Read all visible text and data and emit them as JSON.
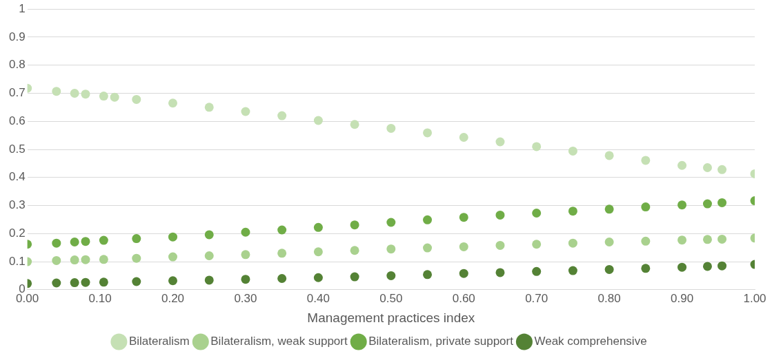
{
  "chart_data": {
    "type": "scatter",
    "xlabel": "Management practices index",
    "xlim": [
      0,
      1
    ],
    "ylim": [
      0,
      1
    ],
    "xticks": [
      {
        "value": 0,
        "label": "0.00"
      },
      {
        "value": 0.1,
        "label": "0.10"
      },
      {
        "value": 0.2,
        "label": "0.20"
      },
      {
        "value": 0.3,
        "label": "0.30"
      },
      {
        "value": 0.4,
        "label": "0.40"
      },
      {
        "value": 0.5,
        "label": "0.50"
      },
      {
        "value": 0.6,
        "label": "0.60"
      },
      {
        "value": 0.7,
        "label": "0.70"
      },
      {
        "value": 0.8,
        "label": "0.80"
      },
      {
        "value": 0.9,
        "label": "0.90"
      },
      {
        "value": 1,
        "label": "1.00"
      }
    ],
    "yticks": [
      0,
      0.1,
      0.2,
      0.3,
      0.4,
      0.5,
      0.6,
      0.7,
      0.8,
      0.9,
      1
    ],
    "grid": "y",
    "legend": "bottom",
    "marker": "circle",
    "series": [
      {
        "name": "Bilateralism",
        "color": "#c5e0b4",
        "x": [
          0,
          0.04,
          0.065,
          0.08,
          0.105,
          0.12,
          0.15,
          0.2,
          0.25,
          0.3,
          0.35,
          0.4,
          0.45,
          0.5,
          0.55,
          0.6,
          0.65,
          0.7,
          0.75,
          0.8,
          0.85,
          0.9,
          0.935,
          0.955,
          1
        ],
        "values": [
          0.718,
          0.707,
          0.7,
          0.697,
          0.69,
          0.686,
          0.678,
          0.665,
          0.65,
          0.635,
          0.62,
          0.603,
          0.589,
          0.575,
          0.559,
          0.543,
          0.527,
          0.51,
          0.494,
          0.478,
          0.461,
          0.443,
          0.435,
          0.428,
          0.413
        ]
      },
      {
        "name": "Bilateralism, weak support",
        "color": "#a9d18e",
        "x": [
          0,
          0.04,
          0.065,
          0.08,
          0.105,
          0.15,
          0.2,
          0.25,
          0.3,
          0.35,
          0.4,
          0.45,
          0.5,
          0.55,
          0.6,
          0.65,
          0.7,
          0.75,
          0.8,
          0.85,
          0.9,
          0.935,
          0.955,
          1
        ],
        "values": [
          0.1,
          0.104,
          0.106,
          0.107,
          0.108,
          0.112,
          0.117,
          0.121,
          0.125,
          0.13,
          0.135,
          0.14,
          0.145,
          0.149,
          0.153,
          0.158,
          0.162,
          0.166,
          0.17,
          0.173,
          0.177,
          0.179,
          0.18,
          0.184
        ]
      },
      {
        "name": "Bilateralism, private support",
        "color": "#70ad47",
        "x": [
          0,
          0.04,
          0.065,
          0.08,
          0.105,
          0.15,
          0.2,
          0.25,
          0.3,
          0.35,
          0.4,
          0.45,
          0.5,
          0.55,
          0.6,
          0.65,
          0.7,
          0.75,
          0.8,
          0.85,
          0.9,
          0.935,
          0.955,
          1
        ],
        "values": [
          0.162,
          0.166,
          0.17,
          0.172,
          0.176,
          0.182,
          0.188,
          0.196,
          0.205,
          0.213,
          0.222,
          0.231,
          0.24,
          0.249,
          0.258,
          0.266,
          0.273,
          0.28,
          0.287,
          0.295,
          0.302,
          0.306,
          0.31,
          0.317
        ]
      },
      {
        "name": "Weak comprehensive",
        "color": "#548235",
        "x": [
          0,
          0.04,
          0.065,
          0.08,
          0.105,
          0.15,
          0.2,
          0.25,
          0.3,
          0.35,
          0.4,
          0.45,
          0.5,
          0.55,
          0.6,
          0.65,
          0.7,
          0.75,
          0.8,
          0.85,
          0.9,
          0.935,
          0.955,
          1
        ],
        "values": [
          0.022,
          0.024,
          0.025,
          0.026,
          0.027,
          0.029,
          0.032,
          0.034,
          0.037,
          0.04,
          0.043,
          0.046,
          0.05,
          0.054,
          0.058,
          0.061,
          0.065,
          0.068,
          0.072,
          0.076,
          0.08,
          0.083,
          0.085,
          0.09
        ]
      }
    ]
  }
}
